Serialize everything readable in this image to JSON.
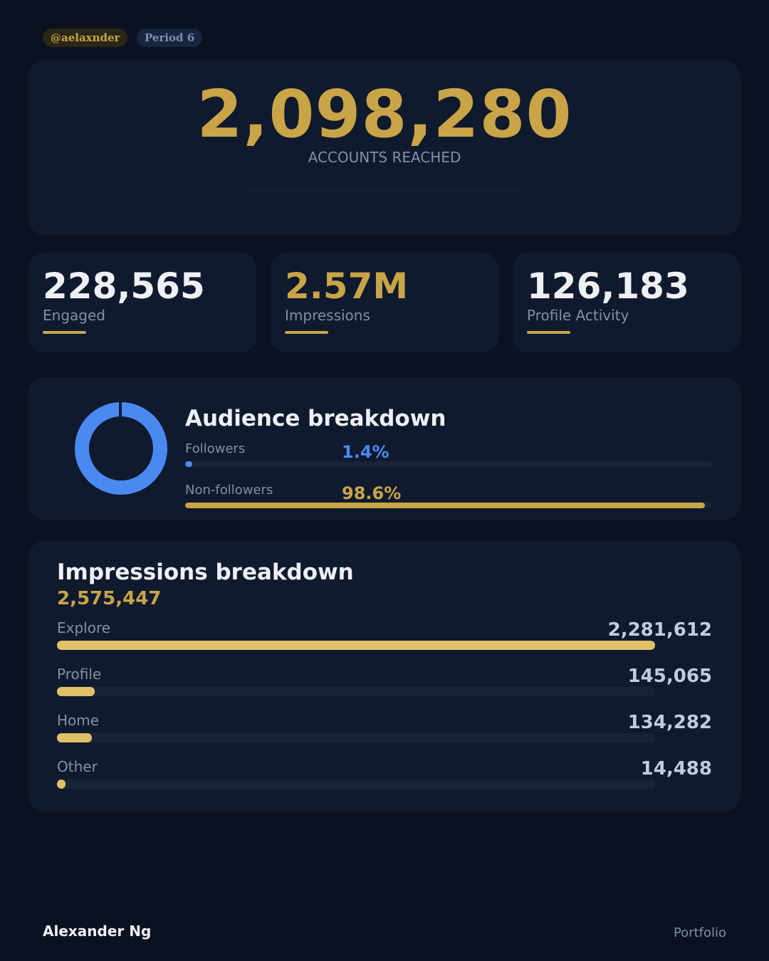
{
  "header": {
    "handle": "@aelaxnder",
    "period": "Period 6"
  },
  "hero": {
    "value": "2,098,280",
    "label": "ACCOUNTS REACHED"
  },
  "stats": [
    {
      "value": "228,565",
      "label": "Engaged",
      "color": "#eef0f4"
    },
    {
      "value": "2.57M",
      "label": "Impressions",
      "color": "#c9a548"
    },
    {
      "value": "126,183",
      "label": "Profile Activity",
      "color": "#eef0f4"
    }
  ],
  "audience": {
    "title": "Audience breakdown",
    "items": [
      {
        "label": "Followers",
        "value": "1.4%",
        "percent": 1.4,
        "color": "#4a8af0"
      },
      {
        "label": "Non-followers",
        "value": "98.6%",
        "percent": 98.6,
        "color": "#c9a548"
      }
    ]
  },
  "impressions": {
    "title": "Impressions breakdown",
    "total": "2,575,447",
    "items": [
      {
        "label": "Explore",
        "value": "2,281,612",
        "n": 2281612
      },
      {
        "label": "Profile",
        "value": "145,065",
        "n": 145065
      },
      {
        "label": "Home",
        "value": "134,282",
        "n": 134282
      },
      {
        "label": "Other",
        "value": "14,488",
        "n": 14488
      }
    ],
    "bar_color": "#e0c068"
  },
  "footer": {
    "name": "Alexander Ng",
    "link": "Portfolio"
  }
}
